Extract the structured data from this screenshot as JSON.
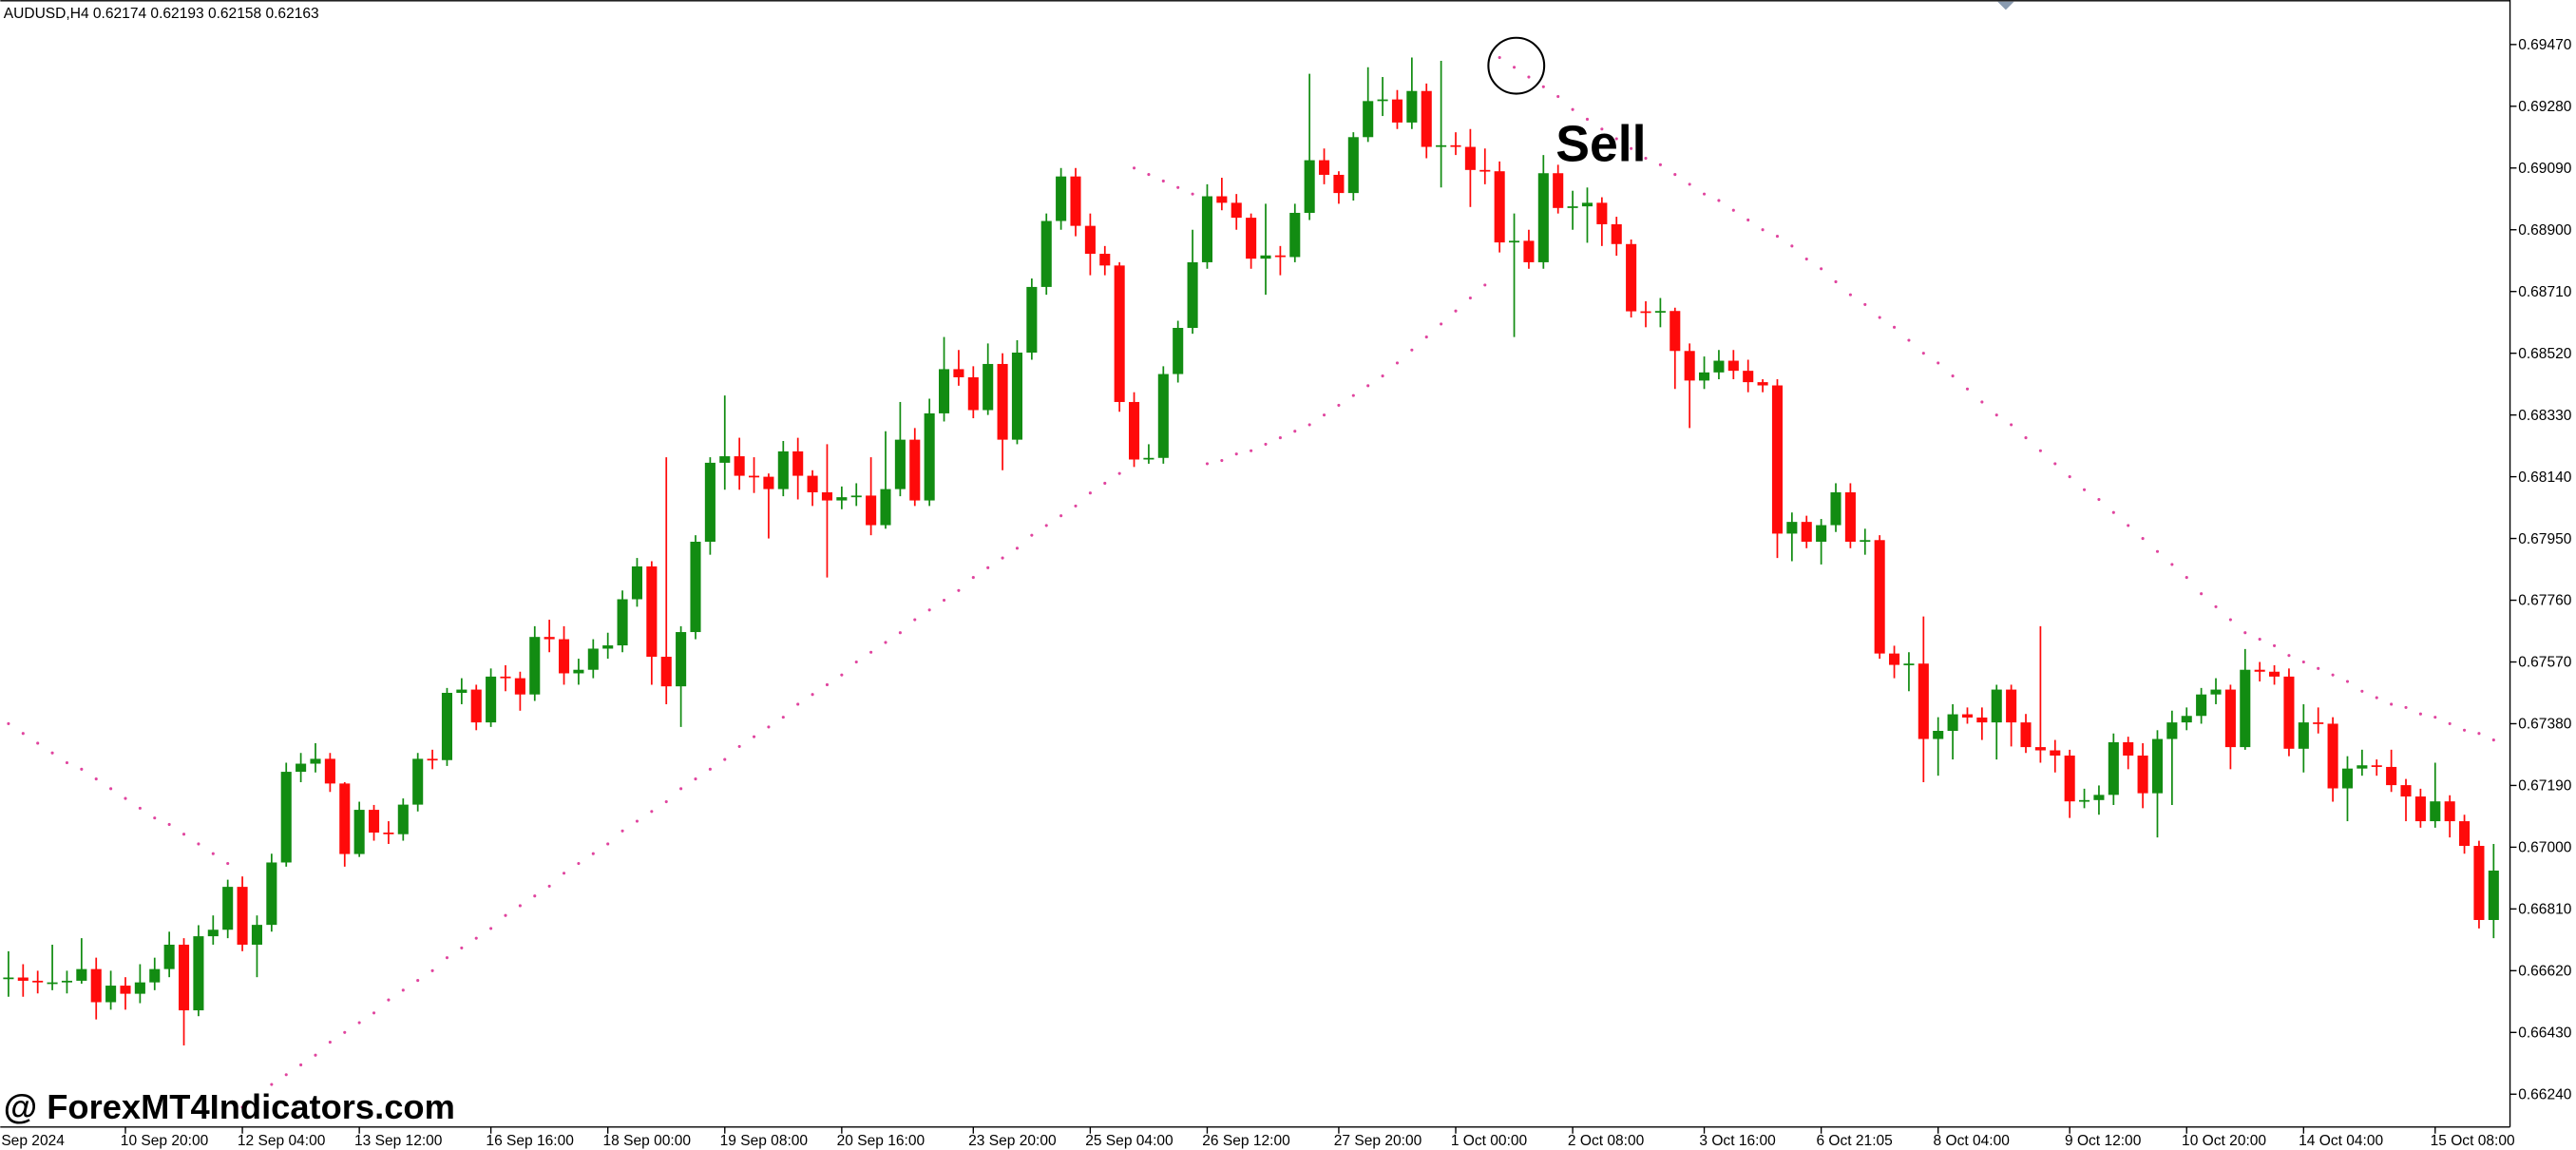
{
  "chart_data": {
    "type": "candlestick",
    "header": "AUDUSD,H4  0.62174 0.62193 0.62158 0.62163",
    "annotation": "Sell",
    "watermark": "@ ForexMT4Indicators.com",
    "up_color": "#128c12",
    "down_color": "#ff0a0a",
    "candles": {
      "open": [
        0.66594,
        0.66599,
        0.66589,
        0.66584,
        0.66584,
        0.66589,
        0.66625,
        0.66523,
        0.66574,
        0.66549,
        0.66584,
        0.66625,
        0.667,
        0.66498,
        0.66726,
        0.66746,
        0.66878,
        0.667,
        0.66761,
        0.66953,
        0.67232,
        0.67257,
        0.67272,
        0.67196,
        0.66979,
        0.67115,
        0.67045,
        0.6704,
        0.67131,
        0.67272,
        0.67268,
        0.67475,
        0.67485,
        0.67384,
        0.67525,
        0.6752,
        0.6747,
        0.67647,
        0.6764,
        0.67535,
        0.67546,
        0.67611,
        0.67621,
        0.67763,
        0.67864,
        0.67586,
        0.67495,
        0.67662,
        0.6794,
        0.68183,
        0.68203,
        0.68143,
        0.6814,
        0.68102,
        0.68218,
        0.68143,
        0.68092,
        0.68067,
        0.68077,
        0.68082,
        0.67991,
        0.68102,
        0.68254,
        0.68067,
        0.68335,
        0.68471,
        0.68446,
        0.68345,
        0.68487,
        0.68254,
        0.68522,
        0.68724,
        0.68927,
        0.69064,
        0.68912,
        0.68826,
        0.6879,
        0.6837,
        0.68193,
        0.68198,
        0.68456,
        0.68598,
        0.688,
        0.69003,
        0.68983,
        0.68937,
        0.68811,
        0.68821,
        0.68816,
        0.68952,
        0.69114,
        0.69069,
        0.69013,
        0.69185,
        0.69296,
        0.69301,
        0.6923,
        0.69327,
        0.69155,
        0.6916,
        0.69155,
        0.69084,
        0.6908,
        0.68861,
        0.68866,
        0.688,
        0.69074,
        0.68967,
        0.68972,
        0.68983,
        0.68917,
        0.68856,
        0.68649,
        0.68645,
        0.6865,
        0.68527,
        0.68436,
        0.68461,
        0.68497,
        0.68466,
        0.68431,
        0.68421,
        0.67965,
        0.68001,
        0.6794,
        0.67991,
        0.68092,
        0.6794,
        0.67945,
        0.67596,
        0.67561,
        0.67565,
        0.67333,
        0.67358,
        0.67409,
        0.67399,
        0.67384,
        0.67485,
        0.67384,
        0.67308,
        0.67298,
        0.67282,
        0.67141,
        0.67145,
        0.67161,
        0.67323,
        0.67282,
        0.67166,
        0.67333,
        0.67384,
        0.67404,
        0.6747,
        0.67485,
        0.67308,
        0.67546,
        0.6754,
        0.67525,
        0.67303,
        0.67384,
        0.6738,
        0.67181,
        0.67242,
        0.67252,
        0.67247,
        0.67191,
        0.67156,
        0.6708,
        0.67141,
        0.6708,
        0.67004,
        0.66776
      ],
      "high": [
        0.6668,
        0.6664,
        0.6662,
        0.667,
        0.6662,
        0.6672,
        0.6666,
        0.6662,
        0.666,
        0.6664,
        0.6666,
        0.6674,
        0.6672,
        0.6676,
        0.6679,
        0.669,
        0.6691,
        0.6679,
        0.6698,
        0.6726,
        0.6729,
        0.6732,
        0.6729,
        0.672,
        0.6714,
        0.6713,
        0.6708,
        0.6715,
        0.6729,
        0.673,
        0.6749,
        0.6752,
        0.675,
        0.6755,
        0.6756,
        0.6754,
        0.6768,
        0.677,
        0.6768,
        0.6758,
        0.6764,
        0.6766,
        0.6779,
        0.6789,
        0.6788,
        0.682,
        0.6768,
        0.6796,
        0.682,
        0.6839,
        0.6826,
        0.682,
        0.6815,
        0.6825,
        0.6826,
        0.6816,
        0.6824,
        0.6811,
        0.6812,
        0.682,
        0.6828,
        0.6837,
        0.6829,
        0.6838,
        0.6857,
        0.6853,
        0.6848,
        0.6855,
        0.6852,
        0.6856,
        0.6875,
        0.6895,
        0.6909,
        0.6909,
        0.6895,
        0.6885,
        0.688,
        0.684,
        0.6824,
        0.6848,
        0.6862,
        0.689,
        0.6904,
        0.6906,
        0.6901,
        0.6895,
        0.6898,
        0.6885,
        0.6898,
        0.6938,
        0.6915,
        0.6908,
        0.692,
        0.694,
        0.6937,
        0.6933,
        0.6943,
        0.6935,
        0.6942,
        0.692,
        0.6921,
        0.6915,
        0.6911,
        0.6895,
        0.689,
        0.6913,
        0.691,
        0.6902,
        0.6903,
        0.69,
        0.6894,
        0.6887,
        0.6868,
        0.6869,
        0.6866,
        0.6855,
        0.6851,
        0.6853,
        0.6853,
        0.685,
        0.6844,
        0.6844,
        0.6803,
        0.6802,
        0.6801,
        0.6812,
        0.6812,
        0.6798,
        0.6796,
        0.6762,
        0.676,
        0.6771,
        0.674,
        0.6744,
        0.6743,
        0.6743,
        0.675,
        0.675,
        0.6741,
        0.6768,
        0.6733,
        0.673,
        0.6718,
        0.6719,
        0.6735,
        0.6734,
        0.6732,
        0.6736,
        0.6742,
        0.6743,
        0.6749,
        0.6752,
        0.675,
        0.6761,
        0.6757,
        0.6756,
        0.6755,
        0.6744,
        0.6743,
        0.674,
        0.6728,
        0.673,
        0.6727,
        0.673,
        0.6721,
        0.6718,
        0.6726,
        0.6716,
        0.671,
        0.6702,
        0.6701
      ],
      "low": [
        0.6654,
        0.6654,
        0.6655,
        0.6656,
        0.6655,
        0.6658,
        0.6647,
        0.665,
        0.665,
        0.6652,
        0.6656,
        0.666,
        0.6639,
        0.6648,
        0.667,
        0.6672,
        0.6668,
        0.666,
        0.6674,
        0.6694,
        0.672,
        0.6723,
        0.6717,
        0.6694,
        0.6697,
        0.6702,
        0.6701,
        0.6702,
        0.6711,
        0.6724,
        0.6725,
        0.6744,
        0.6736,
        0.6737,
        0.6748,
        0.6742,
        0.6745,
        0.676,
        0.675,
        0.675,
        0.6752,
        0.6758,
        0.676,
        0.6774,
        0.675,
        0.6744,
        0.6737,
        0.6764,
        0.679,
        0.681,
        0.681,
        0.6809,
        0.6795,
        0.6808,
        0.6807,
        0.6805,
        0.6783,
        0.6804,
        0.6805,
        0.6796,
        0.6798,
        0.6808,
        0.6805,
        0.6805,
        0.6831,
        0.6842,
        0.6832,
        0.6833,
        0.6816,
        0.6824,
        0.685,
        0.687,
        0.689,
        0.6888,
        0.6876,
        0.6876,
        0.6834,
        0.6817,
        0.6818,
        0.6818,
        0.6843,
        0.6858,
        0.6878,
        0.6896,
        0.689,
        0.6878,
        0.687,
        0.6876,
        0.688,
        0.6893,
        0.6904,
        0.6898,
        0.6899,
        0.6917,
        0.6925,
        0.6921,
        0.6921,
        0.6912,
        0.6903,
        0.6913,
        0.6897,
        0.6904,
        0.6883,
        0.6857,
        0.6878,
        0.6878,
        0.6895,
        0.689,
        0.6886,
        0.6885,
        0.6882,
        0.6863,
        0.686,
        0.686,
        0.6841,
        0.6829,
        0.6841,
        0.6844,
        0.6844,
        0.684,
        0.684,
        0.6789,
        0.6788,
        0.6792,
        0.6787,
        0.6797,
        0.6792,
        0.679,
        0.6758,
        0.6752,
        0.6748,
        0.672,
        0.6722,
        0.6727,
        0.6738,
        0.6733,
        0.6727,
        0.6731,
        0.6729,
        0.6726,
        0.6723,
        0.6709,
        0.6712,
        0.671,
        0.6713,
        0.6724,
        0.6712,
        0.6703,
        0.6713,
        0.6736,
        0.6738,
        0.6744,
        0.6724,
        0.673,
        0.6751,
        0.675,
        0.6728,
        0.6723,
        0.6735,
        0.6714,
        0.6708,
        0.6722,
        0.6722,
        0.6717,
        0.6708,
        0.6706,
        0.6706,
        0.6703,
        0.6698,
        0.6675,
        0.6672
      ],
      "close": [
        0.66599,
        0.66589,
        0.66584,
        0.66584,
        0.66589,
        0.66625,
        0.66523,
        0.66574,
        0.66549,
        0.66584,
        0.66625,
        0.667,
        0.66498,
        0.66726,
        0.66746,
        0.66878,
        0.667,
        0.66761,
        0.66953,
        0.67232,
        0.67257,
        0.67272,
        0.67196,
        0.66979,
        0.67115,
        0.67045,
        0.6704,
        0.67131,
        0.67272,
        0.67268,
        0.67475,
        0.67485,
        0.67384,
        0.67525,
        0.6752,
        0.6747,
        0.67647,
        0.6764,
        0.67535,
        0.67546,
        0.67611,
        0.67621,
        0.67763,
        0.67864,
        0.67586,
        0.67495,
        0.67662,
        0.6794,
        0.68183,
        0.68203,
        0.68143,
        0.6814,
        0.68102,
        0.68218,
        0.68143,
        0.68092,
        0.68067,
        0.68077,
        0.68082,
        0.67991,
        0.68102,
        0.68254,
        0.68067,
        0.68335,
        0.68471,
        0.68446,
        0.68345,
        0.68487,
        0.68254,
        0.68522,
        0.68724,
        0.68927,
        0.69064,
        0.68912,
        0.68826,
        0.6879,
        0.6837,
        0.68193,
        0.68198,
        0.68456,
        0.68598,
        0.688,
        0.69003,
        0.68983,
        0.68937,
        0.68811,
        0.68821,
        0.68816,
        0.68952,
        0.69114,
        0.69069,
        0.69013,
        0.69185,
        0.69296,
        0.69301,
        0.6923,
        0.69327,
        0.69155,
        0.6916,
        0.69155,
        0.69084,
        0.6908,
        0.68861,
        0.68866,
        0.688,
        0.69074,
        0.68967,
        0.68972,
        0.68983,
        0.68917,
        0.68856,
        0.68649,
        0.68645,
        0.6865,
        0.68527,
        0.68436,
        0.68461,
        0.68497,
        0.68466,
        0.68431,
        0.68421,
        0.67965,
        0.68001,
        0.6794,
        0.67991,
        0.68092,
        0.6794,
        0.67945,
        0.67596,
        0.67561,
        0.67565,
        0.67333,
        0.67358,
        0.67409,
        0.67399,
        0.67384,
        0.67485,
        0.67384,
        0.67308,
        0.67298,
        0.67282,
        0.67141,
        0.67145,
        0.67161,
        0.67323,
        0.67282,
        0.67166,
        0.67333,
        0.67384,
        0.67404,
        0.6747,
        0.67485,
        0.67308,
        0.67546,
        0.6754,
        0.67525,
        0.67303,
        0.67384,
        0.6738,
        0.67181,
        0.67242,
        0.67252,
        0.67247,
        0.67191,
        0.67156,
        0.6708,
        0.67141,
        0.6708,
        0.67004,
        0.66776,
        0.66928
      ]
    },
    "sar": {
      "color": "#e0449e",
      "values": [
        0.6738,
        0.6735,
        0.6732,
        0.6729,
        0.6726,
        0.6724,
        0.6721,
        0.6718,
        0.6715,
        0.6712,
        0.6709,
        0.6707,
        0.6704,
        0.6701,
        0.6698,
        0.6695,
        0.662,
        0.6623,
        0.6627,
        0.663,
        0.6633,
        0.6636,
        0.664,
        0.6643,
        0.6646,
        0.6649,
        0.6653,
        0.6656,
        0.6659,
        0.6662,
        0.6666,
        0.6669,
        0.6672,
        0.6675,
        0.6679,
        0.6682,
        0.6685,
        0.6688,
        0.6692,
        0.6695,
        0.6698,
        0.6701,
        0.6705,
        0.6708,
        0.6711,
        0.6714,
        0.6718,
        0.6721,
        0.6724,
        0.6727,
        0.6731,
        0.6734,
        0.6737,
        0.674,
        0.6744,
        0.6747,
        0.675,
        0.6753,
        0.6757,
        0.676,
        0.6763,
        0.6766,
        0.677,
        0.6773,
        0.6776,
        0.6779,
        0.6783,
        0.6786,
        0.6789,
        0.6792,
        0.6796,
        0.6799,
        0.6802,
        0.6805,
        0.6809,
        0.6812,
        0.6815,
        0.6909,
        0.6907,
        0.6905,
        0.6903,
        0.6901,
        0.6818,
        0.6819,
        0.6821,
        0.6822,
        0.6824,
        0.6826,
        0.6828,
        0.683,
        0.6833,
        0.6836,
        0.6839,
        0.6842,
        0.6845,
        0.6849,
        0.6853,
        0.6857,
        0.6861,
        0.6865,
        0.6869,
        0.6873,
        0.6943,
        0.694,
        0.6937,
        0.6934,
        0.6931,
        0.6927,
        0.6924,
        0.6921,
        0.6918,
        0.6915,
        0.6912,
        0.691,
        0.6907,
        0.6904,
        0.6901,
        0.6899,
        0.6896,
        0.6893,
        0.689,
        0.6888,
        0.6885,
        0.6881,
        0.6878,
        0.6874,
        0.687,
        0.6867,
        0.6863,
        0.686,
        0.6856,
        0.6852,
        0.6849,
        0.6845,
        0.6841,
        0.6837,
        0.6833,
        0.683,
        0.6826,
        0.6822,
        0.6818,
        0.6814,
        0.681,
        0.6807,
        0.6803,
        0.6799,
        0.6795,
        0.6791,
        0.6787,
        0.6783,
        0.6778,
        0.6774,
        0.677,
        0.6766,
        0.6764,
        0.6762,
        0.6759,
        0.6757,
        0.6755,
        0.6753,
        0.6751,
        0.6748,
        0.6746,
        0.6744,
        0.6743,
        0.6741,
        0.674,
        0.6738,
        0.6736,
        0.6735,
        0.6733
      ]
    },
    "xlim": [
      -0.56,
      171.12
    ],
    "xticks": [
      {
        "value": -1,
        "label": "9 Sep 2024"
      },
      {
        "value": 8,
        "label": "10 Sep 20:00"
      },
      {
        "value": 16,
        "label": "12 Sep 04:00"
      },
      {
        "value": 24,
        "label": "13 Sep 12:00"
      },
      {
        "value": 33,
        "label": "16 Sep 16:00"
      },
      {
        "value": 41,
        "label": "18 Sep 00:00"
      },
      {
        "value": 49,
        "label": "19 Sep 08:00"
      },
      {
        "value": 57,
        "label": "20 Sep 16:00"
      },
      {
        "value": 66,
        "label": "23 Sep 20:00"
      },
      {
        "value": 74,
        "label": "25 Sep 04:00"
      },
      {
        "value": 82,
        "label": "26 Sep 12:00"
      },
      {
        "value": 91,
        "label": "27 Sep 20:00"
      },
      {
        "value": 99,
        "label": "1 Oct 00:00"
      },
      {
        "value": 107,
        "label": "2 Oct 08:00"
      },
      {
        "value": 116,
        "label": "3 Oct 16:00"
      },
      {
        "value": 124,
        "label": "6 Oct 21:05"
      },
      {
        "value": 132,
        "label": "8 Oct 04:00"
      },
      {
        "value": 141,
        "label": "9 Oct 12:00"
      },
      {
        "value": 149,
        "label": "10 Oct 20:00"
      },
      {
        "value": 157,
        "label": "14 Oct 04:00"
      },
      {
        "value": 166,
        "label": "15 Oct 08:00"
      }
    ],
    "ylim": [
      0.66139,
      0.69607
    ],
    "yticks": [
      {
        "value": 0.6947,
        "label": "0.69470"
      },
      {
        "value": 0.6928,
        "label": "0.69280"
      },
      {
        "value": 0.6909,
        "label": "0.69090"
      },
      {
        "value": 0.689,
        "label": "0.68900"
      },
      {
        "value": 0.6871,
        "label": "0.68710"
      },
      {
        "value": 0.6852,
        "label": "0.68520"
      },
      {
        "value": 0.6833,
        "label": "0.68330"
      },
      {
        "value": 0.6814,
        "label": "0.68140"
      },
      {
        "value": 0.6795,
        "label": "0.67950"
      },
      {
        "value": 0.6776,
        "label": "0.67760"
      },
      {
        "value": 0.6757,
        "label": "0.67570"
      },
      {
        "value": 0.6738,
        "label": "0.67380"
      },
      {
        "value": 0.6719,
        "label": "0.67190"
      },
      {
        "value": 0.67,
        "label": "0.67000"
      },
      {
        "value": 0.6681,
        "label": "0.66810"
      },
      {
        "value": 0.6662,
        "label": "0.66620"
      },
      {
        "value": 0.6643,
        "label": "0.66430"
      },
      {
        "value": 0.6624,
        "label": "0.66240"
      }
    ]
  }
}
